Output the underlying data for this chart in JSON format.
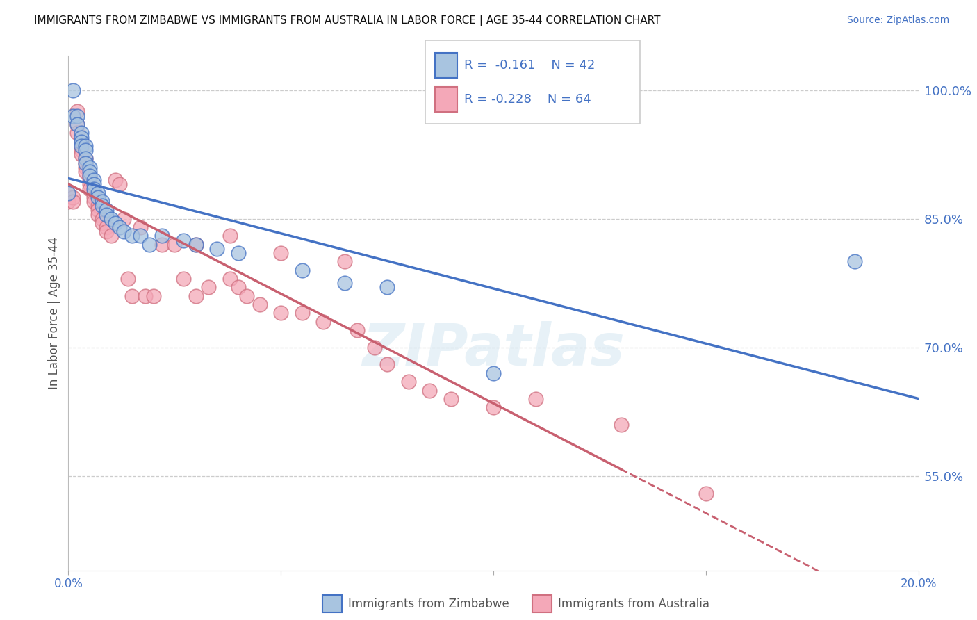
{
  "title": "IMMIGRANTS FROM ZIMBABWE VS IMMIGRANTS FROM AUSTRALIA IN LABOR FORCE | AGE 35-44 CORRELATION CHART",
  "source": "Source: ZipAtlas.com",
  "ylabel": "In Labor Force | Age 35-44",
  "ytick_values": [
    0.55,
    0.7,
    0.85,
    1.0
  ],
  "ytick_labels": [
    "55.0%",
    "70.0%",
    "85.0%",
    "100.0%"
  ],
  "watermark": "ZIPatlas",
  "color_zimbabwe_fill": "#a8c4e0",
  "color_zimbabwe_edge": "#4472C4",
  "color_australia_fill": "#f4a8b8",
  "color_australia_edge": "#d07080",
  "color_line_zimbabwe": "#4472C4",
  "color_line_australia": "#c86070",
  "color_blue": "#4472C4",
  "color_title": "#111111",
  "xmin": 0.0,
  "xmax": 0.2,
  "ymin": 0.44,
  "ymax": 1.04,
  "zimbabwe_x": [
    0.0,
    0.001,
    0.001,
    0.002,
    0.002,
    0.003,
    0.003,
    0.003,
    0.003,
    0.004,
    0.004,
    0.004,
    0.004,
    0.005,
    0.005,
    0.005,
    0.006,
    0.006,
    0.006,
    0.007,
    0.007,
    0.008,
    0.008,
    0.009,
    0.009,
    0.01,
    0.011,
    0.012,
    0.013,
    0.015,
    0.017,
    0.019,
    0.022,
    0.027,
    0.03,
    0.035,
    0.04,
    0.055,
    0.065,
    0.075,
    0.1,
    0.185
  ],
  "zimbabwe_y": [
    0.88,
    1.0,
    0.97,
    0.97,
    0.96,
    0.95,
    0.945,
    0.94,
    0.935,
    0.935,
    0.93,
    0.92,
    0.915,
    0.91,
    0.905,
    0.9,
    0.895,
    0.89,
    0.885,
    0.88,
    0.875,
    0.87,
    0.865,
    0.86,
    0.855,
    0.85,
    0.845,
    0.84,
    0.835,
    0.83,
    0.83,
    0.82,
    0.83,
    0.825,
    0.82,
    0.815,
    0.81,
    0.79,
    0.775,
    0.77,
    0.67,
    0.8
  ],
  "australia_x": [
    0.0,
    0.0,
    0.001,
    0.001,
    0.002,
    0.002,
    0.002,
    0.003,
    0.003,
    0.003,
    0.003,
    0.004,
    0.004,
    0.004,
    0.004,
    0.005,
    0.005,
    0.005,
    0.005,
    0.006,
    0.006,
    0.006,
    0.007,
    0.007,
    0.007,
    0.008,
    0.008,
    0.009,
    0.009,
    0.01,
    0.011,
    0.012,
    0.013,
    0.014,
    0.015,
    0.017,
    0.018,
    0.02,
    0.022,
    0.025,
    0.027,
    0.03,
    0.03,
    0.033,
    0.038,
    0.038,
    0.04,
    0.042,
    0.045,
    0.05,
    0.05,
    0.055,
    0.06,
    0.065,
    0.068,
    0.072,
    0.075,
    0.08,
    0.085,
    0.09,
    0.1,
    0.11,
    0.13,
    0.15
  ],
  "australia_y": [
    0.88,
    0.87,
    0.875,
    0.87,
    0.975,
    0.96,
    0.95,
    0.94,
    0.935,
    0.93,
    0.925,
    0.92,
    0.915,
    0.91,
    0.905,
    0.9,
    0.895,
    0.89,
    0.885,
    0.88,
    0.875,
    0.87,
    0.865,
    0.86,
    0.855,
    0.85,
    0.845,
    0.84,
    0.835,
    0.83,
    0.895,
    0.89,
    0.85,
    0.78,
    0.76,
    0.84,
    0.76,
    0.76,
    0.82,
    0.82,
    0.78,
    0.82,
    0.76,
    0.77,
    0.83,
    0.78,
    0.77,
    0.76,
    0.75,
    0.74,
    0.81,
    0.74,
    0.73,
    0.8,
    0.72,
    0.7,
    0.68,
    0.66,
    0.65,
    0.64,
    0.63,
    0.64,
    0.61,
    0.53
  ]
}
